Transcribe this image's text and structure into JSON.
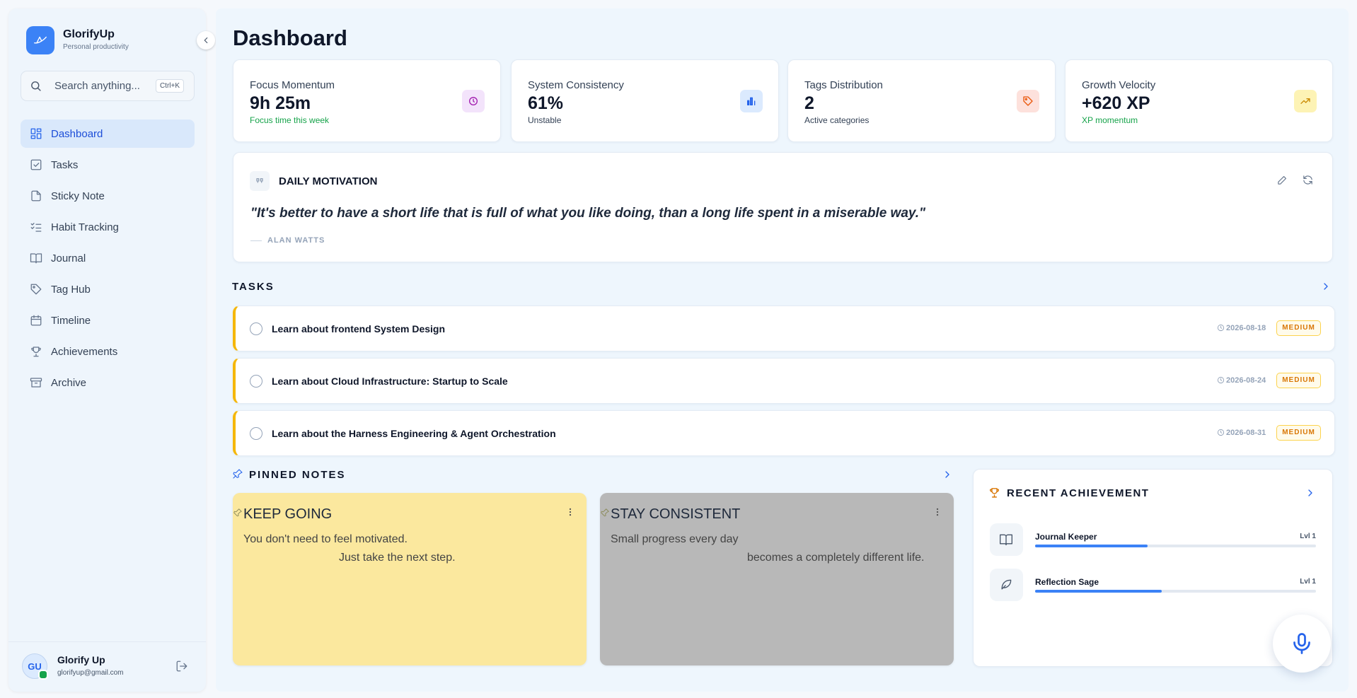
{
  "sidebar": {
    "brand": "GlorifyUp",
    "tagline": "Personal productivity",
    "search_placeholder": "Search anything...",
    "search_shortcut": "Ctrl+K",
    "nav": [
      {
        "label": "Dashboard",
        "active": true
      },
      {
        "label": "Tasks"
      },
      {
        "label": "Sticky Note"
      },
      {
        "label": "Habit Tracking"
      },
      {
        "label": "Journal"
      },
      {
        "label": "Tag Hub"
      },
      {
        "label": "Timeline"
      },
      {
        "label": "Achievements"
      },
      {
        "label": "Archive"
      }
    ],
    "user": {
      "initials": "GU",
      "name": "Glorify Up",
      "email": "glorifyup@gmail.com"
    }
  },
  "header": {
    "title": "Dashboard"
  },
  "stats": [
    {
      "label": "Focus Momentum",
      "value": "9h 25m",
      "note": "Focus time this week",
      "note_color": "#16a34a",
      "icon_bg": "#f3e3fb",
      "icon_color": "#a21caf"
    },
    {
      "label": "System Consistency",
      "value": "61%",
      "note": "Unstable",
      "note_color": "#334155",
      "icon_bg": "#dbeafe",
      "icon_color": "#2563eb"
    },
    {
      "label": "Tags Distribution",
      "value": "2",
      "note": "Active categories",
      "note_color": "#334155",
      "icon_bg": "#fde1dc",
      "icon_color": "#ea580c"
    },
    {
      "label": "Growth Velocity",
      "value": "+620 XP",
      "note": "XP momentum",
      "note_color": "#16a34a",
      "icon_bg": "#fdf3b5",
      "icon_color": "#ca8a04"
    }
  ],
  "motivation": {
    "heading": "DAILY MOTIVATION",
    "quote": "\"It's better to have a short life that is full of what you like doing, than a long life spent in a miserable way.\"",
    "author": "ALAN WATTS"
  },
  "tasks": {
    "heading": "TASKS",
    "items": [
      {
        "title": "Learn about frontend System Design",
        "due": "2026-08-18",
        "priority": "MEDIUM"
      },
      {
        "title": "Learn about Cloud Infrastructure: Startup to Scale",
        "due": "2026-08-24",
        "priority": "MEDIUM"
      },
      {
        "title": "Learn about the Harness Engineering & Agent Orchestration",
        "due": "2026-08-31",
        "priority": "MEDIUM"
      }
    ]
  },
  "notes": {
    "heading": "PINNED NOTES",
    "items": [
      {
        "title": "KEEP GOING",
        "lines": [
          "You don't need to feel motivated.",
          "Just take the next step."
        ],
        "color": "#fbe89e"
      },
      {
        "title": "STAY CONSISTENT",
        "lines": [
          "Small progress every day",
          "becomes a completely different life."
        ],
        "color": "#b8b8b8"
      }
    ]
  },
  "achievements": {
    "heading": "RECENT ACHIEVEMENT",
    "items": [
      {
        "name": "Journal Keeper",
        "level": "Lvl 1",
        "progress": 40
      },
      {
        "name": "Reflection Sage",
        "level": "Lvl 1",
        "progress": 45
      }
    ]
  }
}
